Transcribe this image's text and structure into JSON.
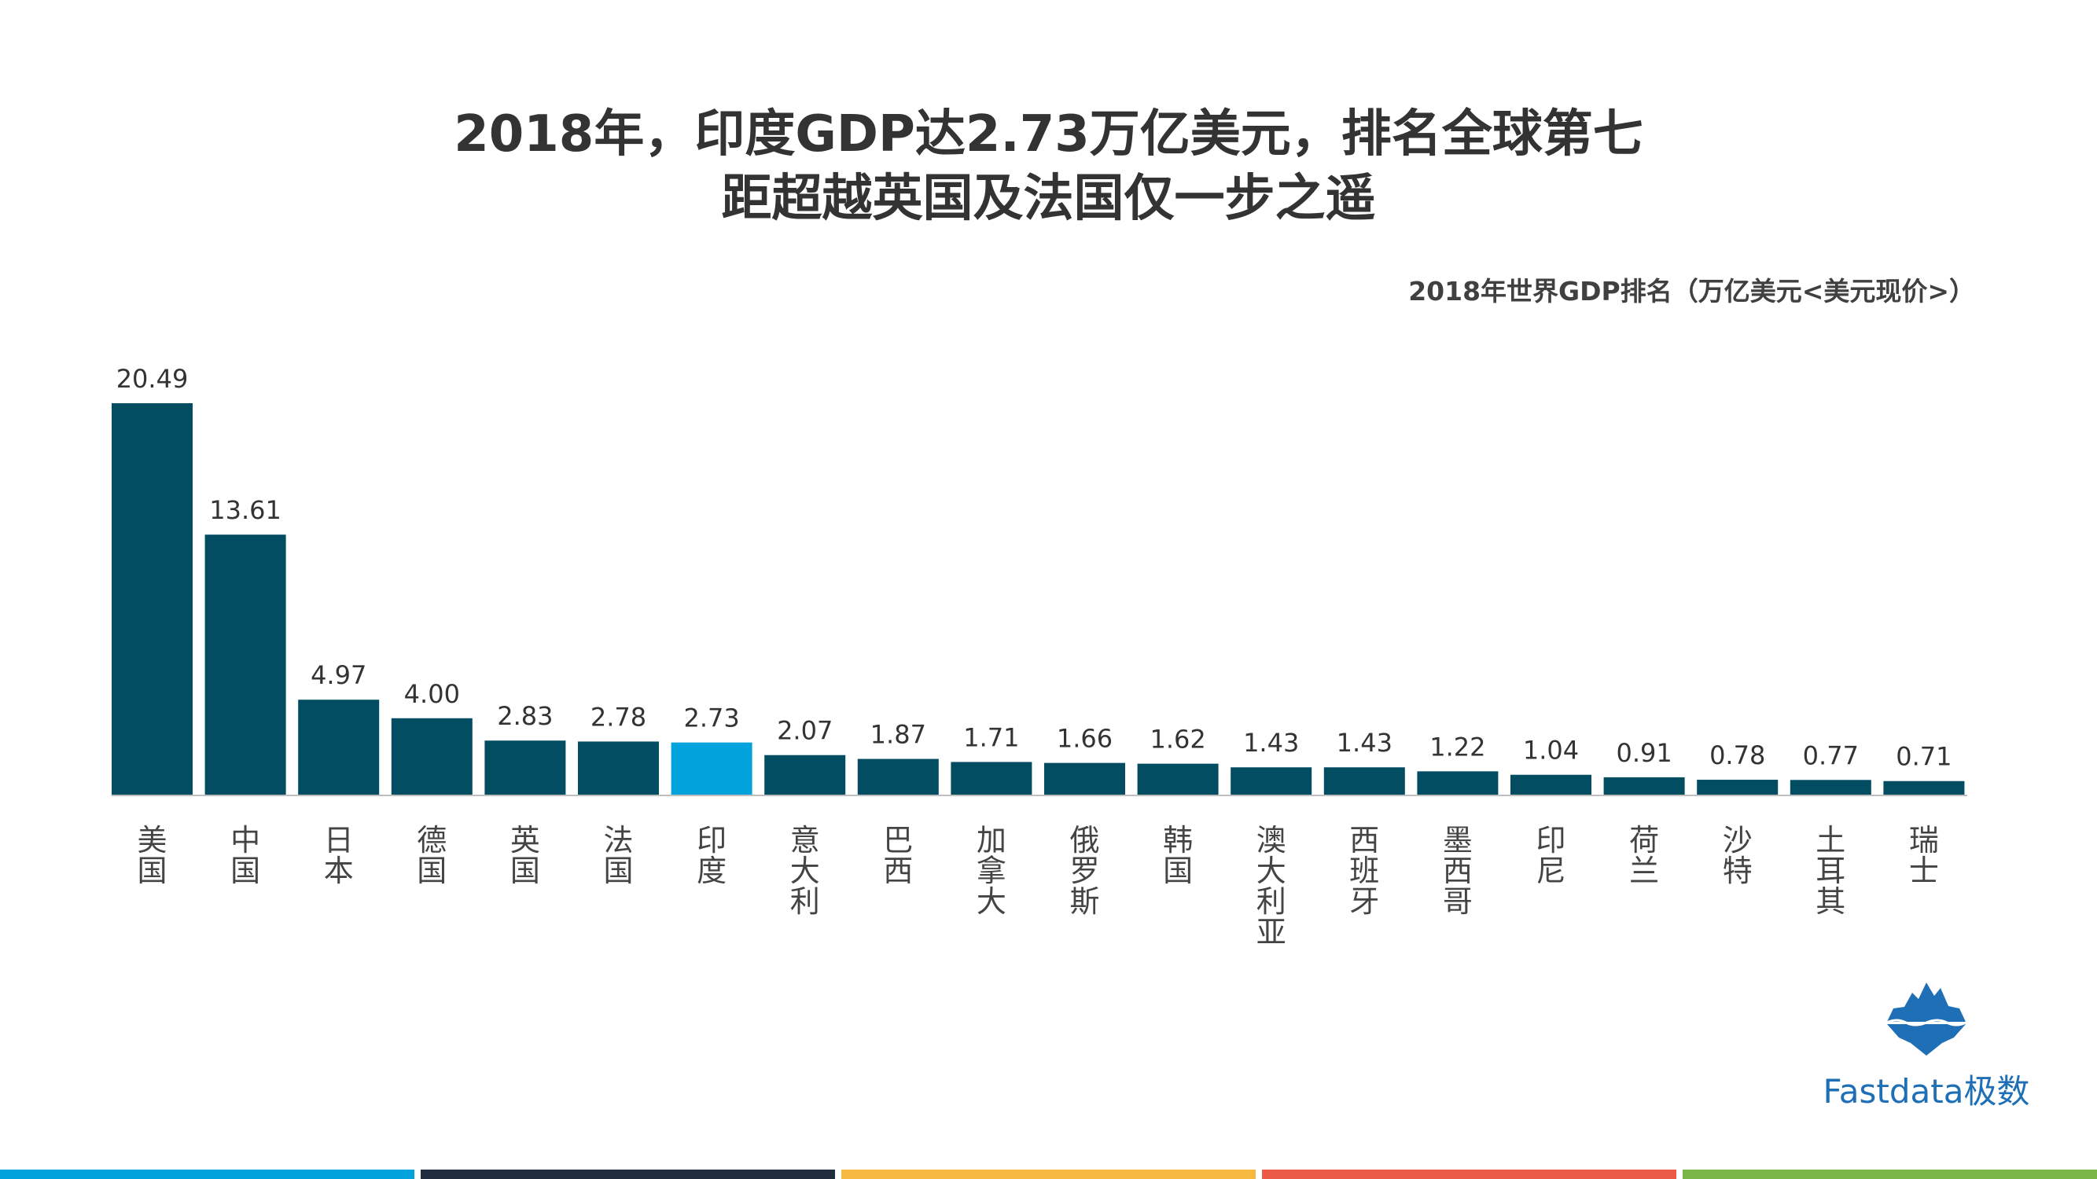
{
  "header": {
    "title_line1": "2018年，印度GDP达2.73万亿美元，排名全球第七",
    "title_line2": "距超越英国及法国仅一步之遥"
  },
  "chart_data": {
    "type": "bar",
    "title": "2018年世界GDP排名（万亿美元<美元现价>）",
    "xlabel": "",
    "ylabel": "",
    "categories": [
      "美国",
      "中国",
      "日本",
      "德国",
      "英国",
      "法国",
      "印度",
      "意大利",
      "巴西",
      "加拿大",
      "俄罗斯",
      "韩国",
      "澳大利亚",
      "西班牙",
      "墨西哥",
      "印尼",
      "荷兰",
      "沙特",
      "土耳其",
      "瑞士"
    ],
    "values": [
      20.49,
      13.61,
      4.97,
      4.0,
      2.83,
      2.78,
      2.73,
      2.07,
      1.87,
      1.71,
      1.66,
      1.62,
      1.43,
      1.43,
      1.22,
      1.04,
      0.91,
      0.78,
      0.77,
      0.71
    ],
    "value_labels": [
      "20.49",
      "13.61",
      "4.97",
      "4.00",
      "2.83",
      "2.78",
      "2.73",
      "2.07",
      "1.87",
      "1.71",
      "1.66",
      "1.62",
      "1.43",
      "1.43",
      "1.22",
      "1.04",
      "0.91",
      "0.78",
      "0.77",
      "0.71"
    ],
    "highlight": "印度",
    "ylim": [
      0,
      20.49
    ],
    "grid": false,
    "bar_color": "#034d63",
    "highlight_color": "#02a3dc",
    "axis_color": "#bfbfbf"
  },
  "logo": {
    "text": "Fastdata极数",
    "icon": "iceberg-icon",
    "color": "#1e6fb6"
  },
  "footer": {
    "colors": [
      "#02a3dc",
      "#1f2d3d",
      "#f5b942",
      "#ea5a47",
      "#7ab648"
    ]
  }
}
